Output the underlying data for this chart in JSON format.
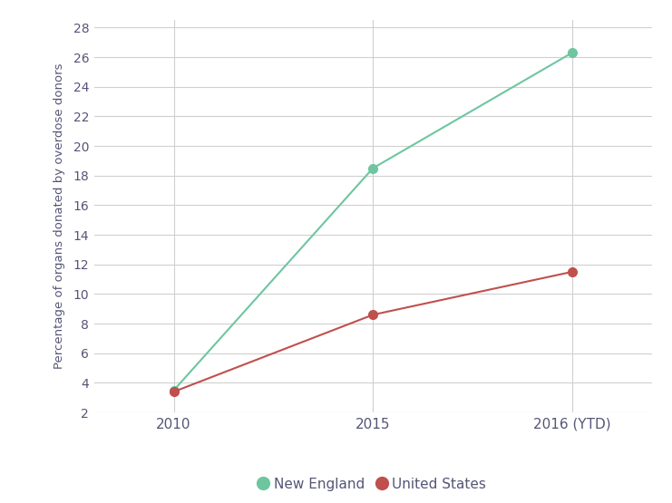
{
  "x_labels": [
    "2010",
    "2015",
    "2016 (YTD)"
  ],
  "x_positions": [
    0,
    1,
    2
  ],
  "new_england_values": [
    3.5,
    18.5,
    26.3
  ],
  "united_states_values": [
    3.4,
    8.6,
    11.5
  ],
  "new_england_color": "#6EC6A0",
  "united_states_color": "#C0504D",
  "ylabel": "Percentage of organs donated by overdose donors",
  "ylim": [
    2,
    28
  ],
  "yticks": [
    2,
    4,
    6,
    8,
    10,
    12,
    14,
    16,
    18,
    20,
    22,
    24,
    26,
    28
  ],
  "legend_new_england": "New England",
  "legend_united_states": "United States",
  "background_color": "#ffffff",
  "grid_color": "#d0d0d0",
  "marker_size": 7,
  "line_width": 1.5,
  "tick_color": "#555577",
  "label_color": "#555577"
}
